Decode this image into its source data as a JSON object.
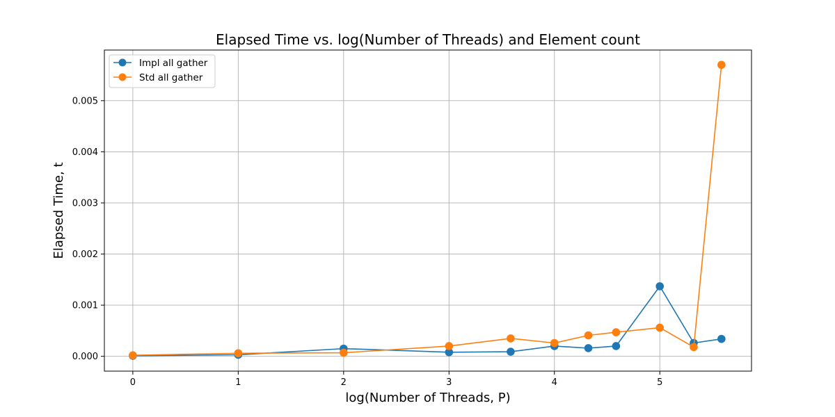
{
  "chart_data": {
    "type": "line",
    "title": "Elapsed Time vs. log(Number of Threads) and Element count",
    "xlabel": "log(Number of Threads, P)",
    "ylabel": "Elapsed Time, t",
    "xlim": [
      -0.27,
      5.87
    ],
    "ylim": [
      -0.00029,
      0.00599
    ],
    "xticks": [
      0,
      1,
      2,
      3,
      4,
      5
    ],
    "xtick_labels": [
      "0",
      "1",
      "2",
      "3",
      "4",
      "5"
    ],
    "yticks": [
      0,
      0.001,
      0.002,
      0.003,
      0.004,
      0.005
    ],
    "ytick_labels": [
      "0.000",
      "0.001",
      "0.002",
      "0.003",
      "0.004",
      "0.005"
    ],
    "grid": true,
    "legend_position": "top-left",
    "x": [
      0,
      1,
      2,
      3,
      3.585,
      4,
      4.322,
      4.585,
      5,
      5.322,
      5.585
    ],
    "series": [
      {
        "name": "Impl all gather",
        "color": "#1f77b4",
        "values": [
          1e-05,
          3e-05,
          0.00015,
          8e-05,
          9e-05,
          0.0002,
          0.00016,
          0.0002,
          0.00137,
          0.00026,
          0.00034
        ]
      },
      {
        "name": "Std all gather",
        "color": "#ff7f0e",
        "values": [
          2e-05,
          6e-05,
          7e-05,
          0.0002,
          0.00035,
          0.00026,
          0.00041,
          0.00047,
          0.00056,
          0.00018,
          0.0057
        ]
      }
    ]
  }
}
